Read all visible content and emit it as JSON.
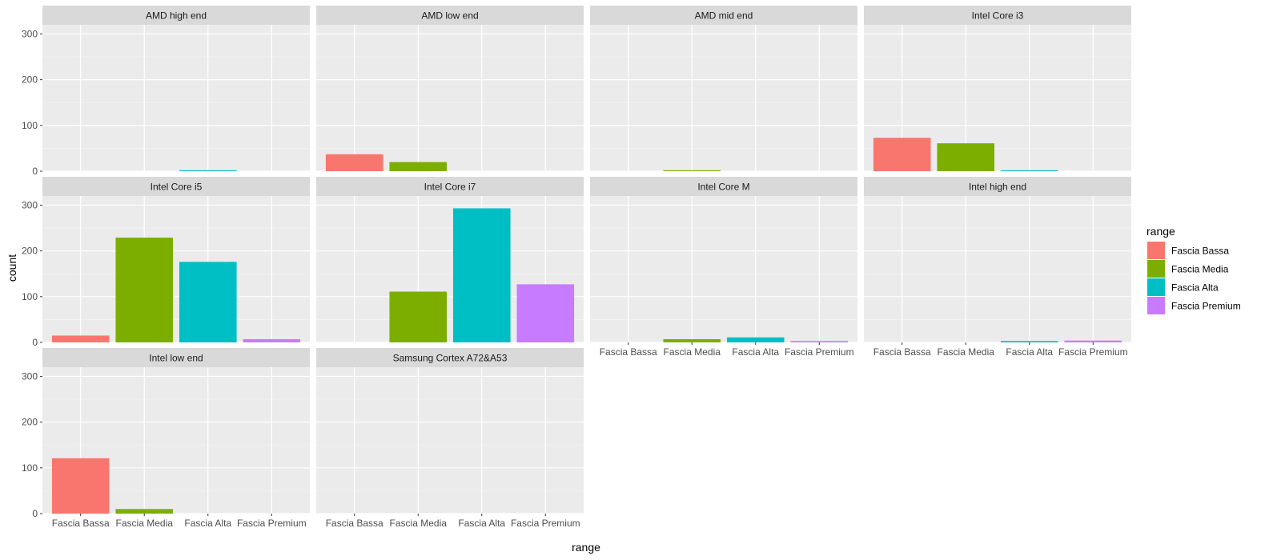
{
  "chart_data": {
    "type": "bar",
    "facet_wrap": true,
    "xlabel": "range",
    "ylabel": "count",
    "ylim": [
      0,
      320
    ],
    "yticks": [
      0,
      100,
      200,
      300
    ],
    "grid": true,
    "legend_position": "right",
    "categories": [
      "Fascia Bassa",
      "Fascia Media",
      "Fascia Alta",
      "Fascia Premium"
    ],
    "legend": {
      "title": "range",
      "entries": [
        "Fascia Bassa",
        "Fascia Media",
        "Fascia Alta",
        "Fascia Premium"
      ],
      "colors": [
        "#F8766D",
        "#7CAE00",
        "#00BFC4",
        "#C77CFF"
      ]
    },
    "panels": [
      {
        "title": "AMD high end",
        "values": [
          0,
          0,
          2,
          0
        ]
      },
      {
        "title": "AMD low end",
        "values": [
          37,
          20,
          0,
          0
        ]
      },
      {
        "title": "AMD mid end",
        "values": [
          0,
          2,
          0,
          0
        ]
      },
      {
        "title": "Intel Core i3",
        "values": [
          73,
          61,
          2,
          0
        ]
      },
      {
        "title": "Intel Core i5",
        "values": [
          15,
          229,
          176,
          7
        ]
      },
      {
        "title": "Intel Core i7",
        "values": [
          0,
          111,
          293,
          127
        ]
      },
      {
        "title": "Intel Core M",
        "values": [
          0,
          7,
          11,
          3
        ]
      },
      {
        "title": "Intel high end",
        "values": [
          0,
          0,
          3,
          4
        ]
      },
      {
        "title": "Intel low end",
        "values": [
          121,
          10,
          0,
          0
        ]
      },
      {
        "title": "Samsung Cortex A72&A53",
        "values": [
          0,
          0,
          0,
          0
        ]
      }
    ]
  }
}
